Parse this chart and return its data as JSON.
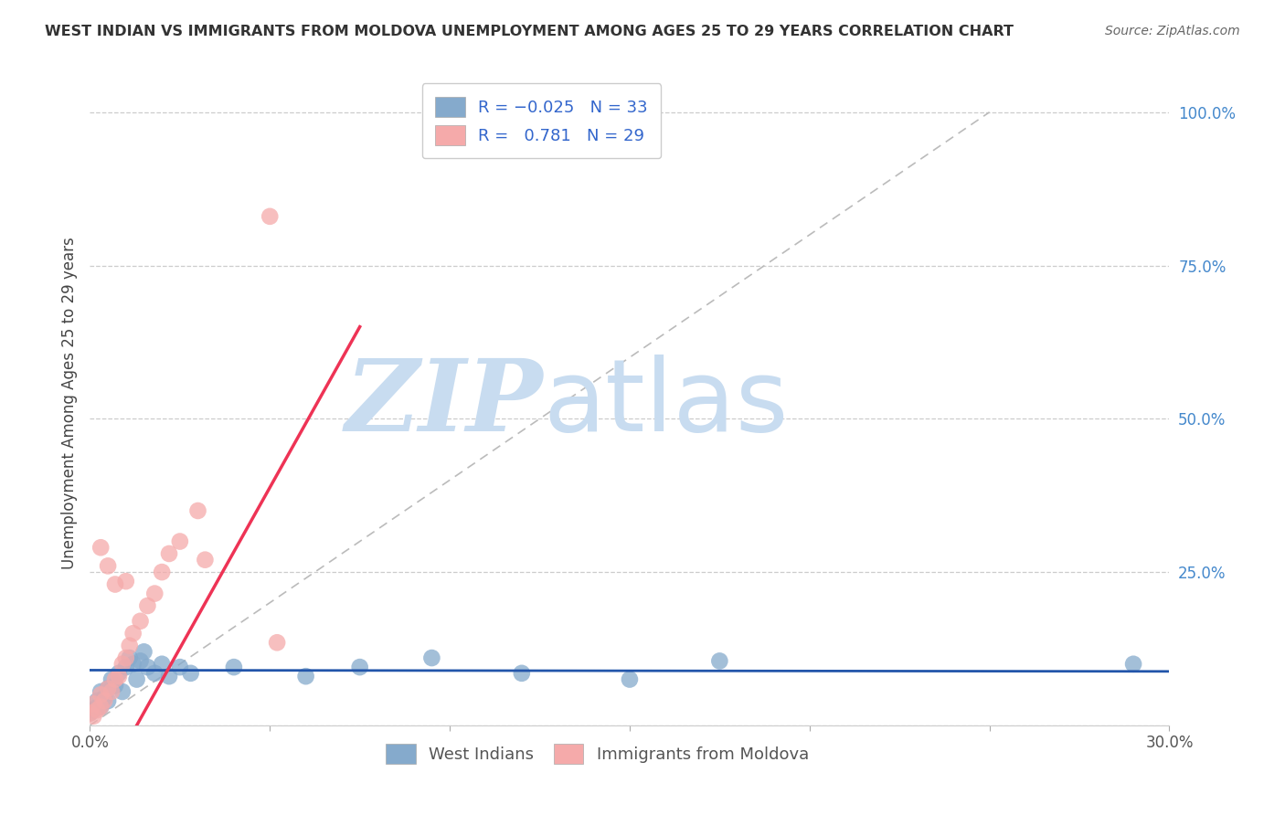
{
  "title": "WEST INDIAN VS IMMIGRANTS FROM MOLDOVA UNEMPLOYMENT AMONG AGES 25 TO 29 YEARS CORRELATION CHART",
  "source": "Source: ZipAtlas.com",
  "ylabel": "Unemployment Among Ages 25 to 29 years",
  "x_min": 0.0,
  "x_max": 0.3,
  "y_min": 0.0,
  "y_max": 1.05,
  "legend_label1": "West Indians",
  "legend_label2": "Immigrants from Moldova",
  "blue_color": "#85AACC",
  "pink_color": "#F5AAAA",
  "trendline_blue_color": "#2255AA",
  "trendline_pink_color": "#EE3355",
  "diagonal_color": "#BBBBBB",
  "background_color": "#FFFFFF",
  "grid_color": "#CCCCCC",
  "watermark_zip_color": "#C8DCF0",
  "watermark_atlas_color": "#C8DCF0",
  "wi_x": [
    0.0,
    0.001,
    0.002,
    0.002,
    0.003,
    0.003,
    0.004,
    0.005,
    0.005,
    0.006,
    0.007,
    0.008,
    0.009,
    0.01,
    0.011,
    0.012,
    0.013,
    0.014,
    0.015,
    0.016,
    0.018,
    0.02,
    0.022,
    0.025,
    0.028,
    0.04,
    0.06,
    0.075,
    0.095,
    0.12,
    0.15,
    0.175,
    0.29
  ],
  "wi_y": [
    0.02,
    0.025,
    0.03,
    0.04,
    0.03,
    0.055,
    0.045,
    0.06,
    0.04,
    0.075,
    0.065,
    0.085,
    0.055,
    0.095,
    0.11,
    0.1,
    0.075,
    0.105,
    0.12,
    0.095,
    0.085,
    0.1,
    0.08,
    0.095,
    0.085,
    0.095,
    0.08,
    0.095,
    0.11,
    0.085,
    0.075,
    0.105,
    0.1
  ],
  "mo_x": [
    0.0,
    0.001,
    0.001,
    0.002,
    0.003,
    0.003,
    0.004,
    0.005,
    0.006,
    0.007,
    0.008,
    0.009,
    0.01,
    0.011,
    0.012,
    0.014,
    0.016,
    0.018,
    0.02,
    0.022,
    0.025,
    0.03,
    0.032,
    0.05,
    0.052,
    0.003,
    0.005,
    0.007,
    0.01
  ],
  "mo_y": [
    0.02,
    0.015,
    0.035,
    0.025,
    0.03,
    0.05,
    0.04,
    0.06,
    0.055,
    0.075,
    0.08,
    0.1,
    0.11,
    0.13,
    0.15,
    0.17,
    0.195,
    0.215,
    0.25,
    0.28,
    0.3,
    0.35,
    0.27,
    0.83,
    0.135,
    0.29,
    0.26,
    0.23,
    0.235
  ],
  "mo_trend_x": [
    0.013,
    0.075
  ],
  "mo_trend_y": [
    0.0,
    0.65
  ],
  "wi_trend_x": [
    0.0,
    0.3
  ],
  "wi_trend_y": [
    0.09,
    0.088
  ]
}
